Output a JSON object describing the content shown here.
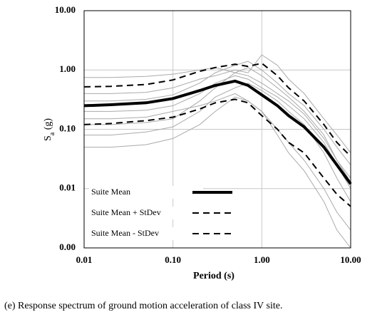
{
  "chart_data": {
    "type": "line",
    "log_x": true,
    "log_y": true,
    "grid": true,
    "legend": "lower left",
    "x_label": "Period (s)",
    "y_label": [
      "S",
      "a",
      " (g)"
    ],
    "caption": "(e) Response spectrum of ground motion acceleration of class IV site.",
    "xlim": [
      0.01,
      10
    ],
    "ylim": [
      0.001,
      10
    ],
    "xticks": [
      {
        "value": 0.01,
        "label": "0.01"
      },
      {
        "value": 0.1,
        "label": "0.10"
      },
      {
        "value": 1,
        "label": "1.00"
      },
      {
        "value": 10,
        "label": "10.00"
      }
    ],
    "yticks": [
      {
        "value": 0.001,
        "label": "0.00"
      },
      {
        "value": 0.01,
        "label": "0.01"
      },
      {
        "value": 0.1,
        "label": "0.10"
      },
      {
        "value": 1,
        "label": "1.00"
      },
      {
        "value": 10,
        "label": "10.00"
      }
    ],
    "x": [
      0.01,
      0.02,
      0.05,
      0.1,
      0.2,
      0.3,
      0.5,
      0.7,
      1,
      1.5,
      2,
      3,
      5,
      7,
      10
    ],
    "series": [
      {
        "color": "#aaaaaa",
        "width": 1,
        "values": [
          0.05,
          0.05,
          0.055,
          0.07,
          0.12,
          0.2,
          0.35,
          0.3,
          0.2,
          0.1,
          0.06,
          0.03,
          0.01,
          0.004,
          0.002
        ]
      },
      {
        "color": "#aaaaaa",
        "width": 1,
        "values": [
          0.08,
          0.08,
          0.09,
          0.11,
          0.2,
          0.35,
          0.5,
          0.6,
          0.45,
          0.3,
          0.2,
          0.12,
          0.04,
          0.015,
          0.006
        ]
      },
      {
        "color": "#aaaaaa",
        "width": 1,
        "values": [
          0.12,
          0.12,
          0.13,
          0.15,
          0.3,
          0.5,
          0.9,
          1.1,
          0.8,
          0.5,
          0.35,
          0.2,
          0.08,
          0.03,
          0.015
        ]
      },
      {
        "color": "#aaaaaa",
        "width": 1,
        "values": [
          0.2,
          0.2,
          0.21,
          0.25,
          0.4,
          0.6,
          0.8,
          0.7,
          0.5,
          0.35,
          0.25,
          0.15,
          0.06,
          0.025,
          0.01
        ]
      },
      {
        "color": "#aaaaaa",
        "width": 1,
        "values": [
          0.3,
          0.3,
          0.32,
          0.38,
          0.6,
          0.9,
          1.2,
          1.4,
          1.0,
          0.6,
          0.4,
          0.25,
          0.1,
          0.05,
          0.025
        ]
      },
      {
        "color": "#aaaaaa",
        "width": 1,
        "values": [
          0.4,
          0.4,
          0.42,
          0.5,
          0.7,
          0.8,
          1.0,
          0.9,
          1.8,
          1.2,
          0.7,
          0.4,
          0.15,
          0.08,
          0.04
        ]
      },
      {
        "color": "#aaaaaa",
        "width": 1,
        "values": [
          0.75,
          0.75,
          0.78,
          0.85,
          1.0,
          1.1,
          0.9,
          0.8,
          0.6,
          0.4,
          0.3,
          0.18,
          0.07,
          0.03,
          0.013
        ]
      },
      {
        "color": "#aaaaaa",
        "width": 1,
        "values": [
          0.15,
          0.15,
          0.16,
          0.2,
          0.25,
          0.3,
          0.4,
          0.3,
          0.2,
          0.08,
          0.04,
          0.02,
          0.006,
          0.002,
          0.001
        ]
      },
      {
        "name": "Suite Mean",
        "color": "#000000",
        "width": 4,
        "values": [
          0.25,
          0.26,
          0.28,
          0.33,
          0.45,
          0.55,
          0.65,
          0.55,
          0.38,
          0.25,
          0.17,
          0.11,
          0.05,
          0.025,
          0.012
        ]
      },
      {
        "name": "Suite Mean + StDev",
        "color": "#000000",
        "width": 2,
        "dash": true,
        "values": [
          0.52,
          0.53,
          0.57,
          0.68,
          0.95,
          1.1,
          1.25,
          1.15,
          1.3,
          0.8,
          0.5,
          0.3,
          0.12,
          0.06,
          0.035
        ]
      },
      {
        "name": "Suite Mean - StDev",
        "color": "#000000",
        "width": 2,
        "dash": true,
        "values": [
          0.12,
          0.125,
          0.14,
          0.16,
          0.22,
          0.28,
          0.32,
          0.28,
          0.17,
          0.1,
          0.06,
          0.04,
          0.015,
          0.008,
          0.005
        ]
      }
    ]
  }
}
